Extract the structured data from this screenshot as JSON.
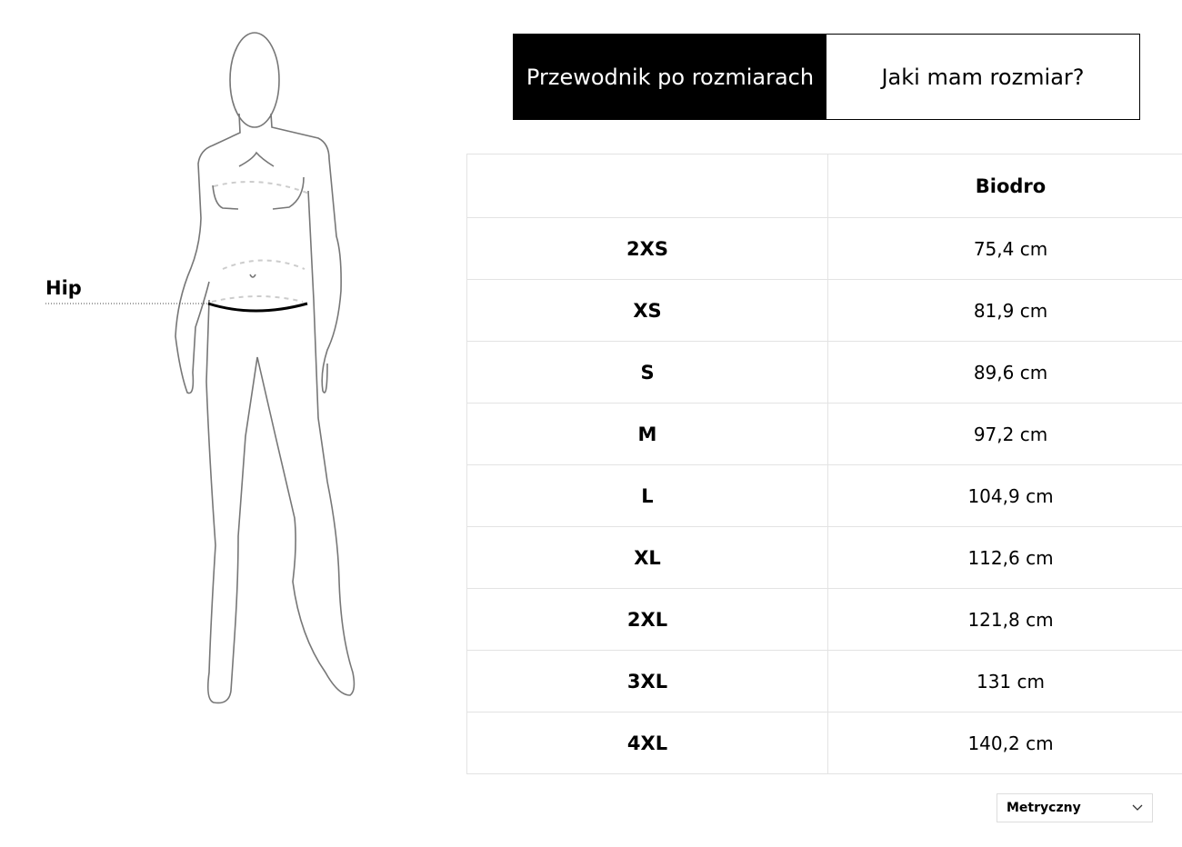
{
  "figure": {
    "measurement_label": "Hip"
  },
  "tabs": [
    {
      "label": "Przewodnik po rozmiarach",
      "active": true
    },
    {
      "label": "Jaki mam rozmiar?",
      "active": false
    }
  ],
  "table": {
    "headers": [
      "",
      "Biodro"
    ],
    "rows": [
      {
        "size": "2XS",
        "hip": "75,4 cm"
      },
      {
        "size": "XS",
        "hip": "81,9 cm"
      },
      {
        "size": "S",
        "hip": "89,6 cm"
      },
      {
        "size": "M",
        "hip": "97,2 cm"
      },
      {
        "size": "L",
        "hip": "104,9 cm"
      },
      {
        "size": "XL",
        "hip": "112,6 cm"
      },
      {
        "size": "2XL",
        "hip": "121,8 cm"
      },
      {
        "size": "3XL",
        "hip": "131 cm"
      },
      {
        "size": "4XL",
        "hip": "140,2 cm"
      }
    ]
  },
  "unit_select": {
    "value": "Metryczny",
    "icon": "chevron-down-icon"
  }
}
